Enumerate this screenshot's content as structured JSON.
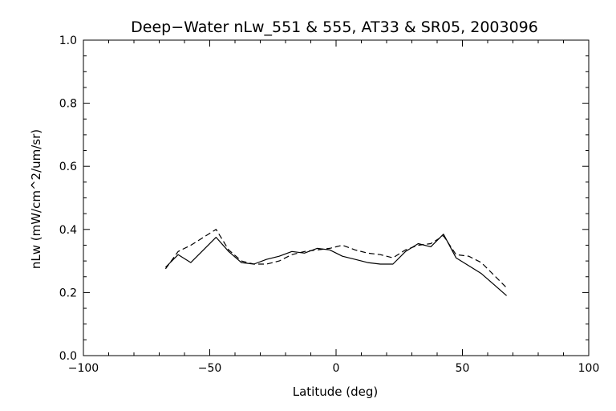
{
  "chart_data": {
    "type": "line",
    "title": "Deep−Water nLw_551 & 555, AT33 & SR05, 2003096",
    "xlabel": "Latitude (deg)",
    "ylabel": "nLw (mW/cm^2/um/sr)",
    "xlim": [
      -100,
      100
    ],
    "ylim": [
      0.0,
      1.0
    ],
    "x_ticks": [
      -100,
      -50,
      0,
      50,
      100
    ],
    "x_tick_labels": [
      "−100",
      "−50",
      "0",
      "50",
      "100"
    ],
    "y_ticks": [
      0.0,
      0.2,
      0.4,
      0.6,
      0.8,
      1.0
    ],
    "y_tick_labels": [
      "0.0",
      "0.2",
      "0.4",
      "0.6",
      "0.8",
      "1.0"
    ],
    "grid": false,
    "series": [
      {
        "style": "solid",
        "color": "#000000",
        "x": [
          -67.5,
          -62.5,
          -57.5,
          -47.5,
          -42.5,
          -37.5,
          -32.5,
          -27.5,
          -22.5,
          -17.5,
          -12.5,
          -7.5,
          -2.5,
          2.5,
          7.5,
          12.5,
          17.5,
          22.5,
          27.5,
          32.5,
          37.5,
          42.5,
          47.5,
          52.5,
          57.5,
          62.5,
          67.5
        ],
        "y": [
          0.28,
          0.32,
          0.295,
          0.375,
          0.33,
          0.295,
          0.29,
          0.305,
          0.315,
          0.33,
          0.325,
          0.34,
          0.335,
          0.315,
          0.305,
          0.295,
          0.29,
          0.29,
          0.33,
          0.355,
          0.345,
          0.385,
          0.31,
          0.285,
          0.26,
          0.225,
          0.19
        ]
      },
      {
        "style": "dashed",
        "color": "#000000",
        "x": [
          -67.5,
          -62.5,
          -57.5,
          -47.5,
          -42.5,
          -37.5,
          -32.5,
          -27.5,
          -22.5,
          -17.5,
          -12.5,
          -7.5,
          -2.5,
          2.5,
          7.5,
          12.5,
          17.5,
          22.5,
          27.5,
          32.5,
          37.5,
          42.5,
          47.5,
          52.5,
          57.5,
          62.5,
          67.5
        ],
        "y": [
          0.275,
          0.33,
          0.35,
          0.4,
          0.335,
          0.3,
          0.29,
          0.29,
          0.3,
          0.32,
          0.33,
          0.335,
          0.34,
          0.35,
          0.335,
          0.325,
          0.32,
          0.31,
          0.335,
          0.35,
          0.355,
          0.38,
          0.32,
          0.315,
          0.295,
          0.255,
          0.215
        ]
      }
    ]
  }
}
